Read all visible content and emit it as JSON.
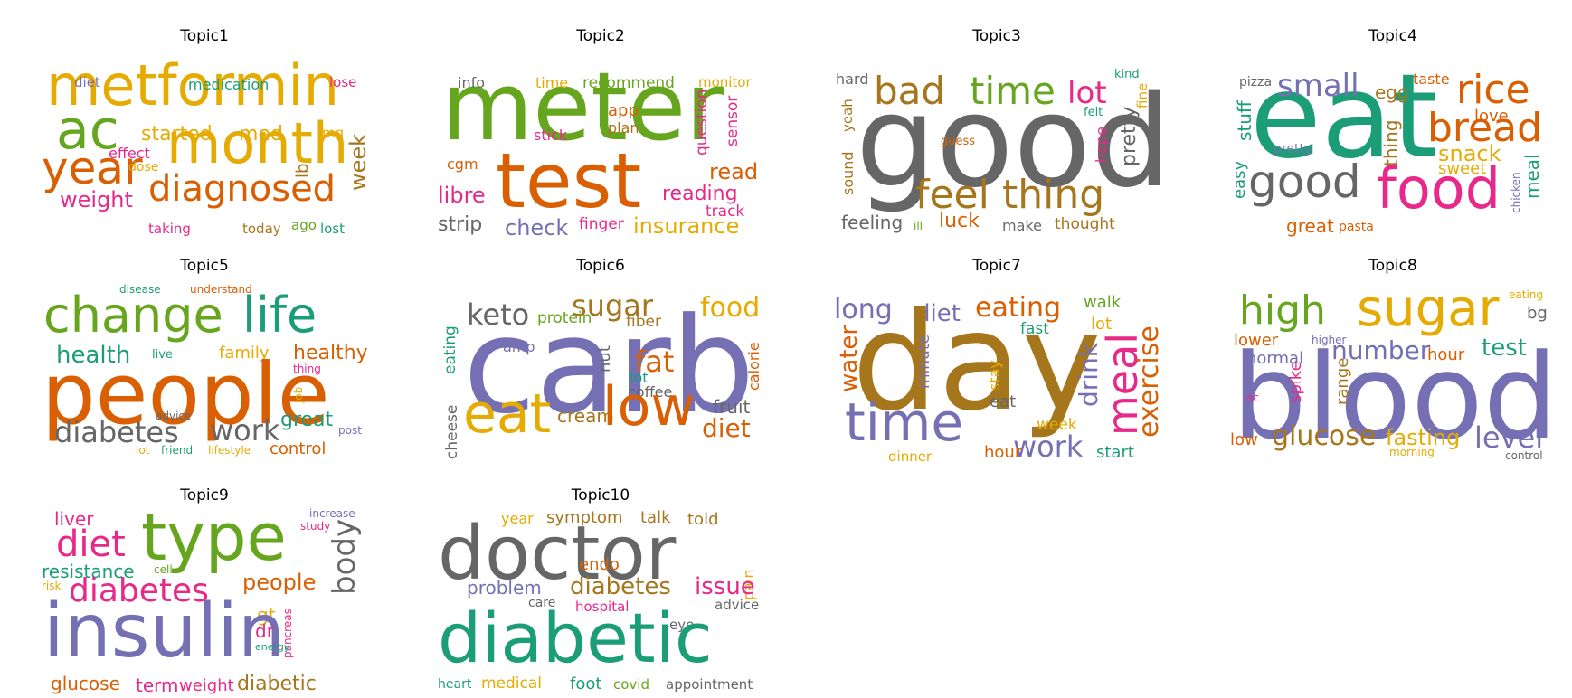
{
  "colors": {
    "green": "#1b9e77",
    "orange": "#d95f02",
    "purple": "#7570b3",
    "pink": "#e7298a",
    "lime": "#66a61e",
    "yellow": "#e6ab02",
    "brown": "#a6761d",
    "gray": "#666666"
  },
  "topics": [
    {
      "title": "Topic1",
      "words": [
        {
          "text": "metformin",
          "color": "yellow"
        },
        {
          "text": "ac",
          "color": "lime"
        },
        {
          "text": "month",
          "color": "yellow"
        },
        {
          "text": "year",
          "color": "orange"
        },
        {
          "text": "diagnosed",
          "color": "orange"
        },
        {
          "text": "started",
          "color": "yellow"
        },
        {
          "text": "med",
          "color": "yellow"
        },
        {
          "text": "weight",
          "color": "pink"
        },
        {
          "text": "week",
          "color": "brown"
        },
        {
          "text": "lb",
          "color": "brown"
        },
        {
          "text": "medication",
          "color": "green"
        },
        {
          "text": "diet",
          "color": "purple"
        },
        {
          "text": "lose",
          "color": "pink"
        },
        {
          "text": "effect",
          "color": "pink"
        },
        {
          "text": "dose",
          "color": "yellow"
        },
        {
          "text": "mg",
          "color": "yellow"
        },
        {
          "text": "taking",
          "color": "pink"
        },
        {
          "text": "today",
          "color": "brown"
        },
        {
          "text": "ago",
          "color": "lime"
        },
        {
          "text": "lost",
          "color": "green"
        }
      ]
    },
    {
      "title": "Topic2",
      "words": [
        {
          "text": "meter",
          "color": "lime"
        },
        {
          "text": "test",
          "color": "orange"
        },
        {
          "text": "info",
          "color": "gray"
        },
        {
          "text": "time",
          "color": "yellow"
        },
        {
          "text": "recommend",
          "color": "lime"
        },
        {
          "text": "monitor",
          "color": "yellow"
        },
        {
          "text": "app",
          "color": "orange"
        },
        {
          "text": "plan",
          "color": "brown"
        },
        {
          "text": "stick",
          "color": "pink"
        },
        {
          "text": "cgm",
          "color": "orange"
        },
        {
          "text": "libre",
          "color": "pink"
        },
        {
          "text": "question",
          "color": "pink"
        },
        {
          "text": "sensor",
          "color": "pink"
        },
        {
          "text": "read",
          "color": "orange"
        },
        {
          "text": "reading",
          "color": "pink"
        },
        {
          "text": "track",
          "color": "pink"
        },
        {
          "text": "strip",
          "color": "gray"
        },
        {
          "text": "check",
          "color": "purple"
        },
        {
          "text": "finger",
          "color": "pink"
        },
        {
          "text": "insurance",
          "color": "yellow"
        }
      ]
    },
    {
      "title": "Topic3",
      "words": [
        {
          "text": "good",
          "color": "gray"
        },
        {
          "text": "bad",
          "color": "brown"
        },
        {
          "text": "time",
          "color": "lime"
        },
        {
          "text": "lot",
          "color": "pink"
        },
        {
          "text": "hard",
          "color": "gray"
        },
        {
          "text": "kind",
          "color": "green"
        },
        {
          "text": "felt",
          "color": "green"
        },
        {
          "text": "fine",
          "color": "yellow"
        },
        {
          "text": "yeah",
          "color": "brown"
        },
        {
          "text": "guess",
          "color": "orange"
        },
        {
          "text": "hope",
          "color": "pink"
        },
        {
          "text": "pretty",
          "color": "gray"
        },
        {
          "text": "sound",
          "color": "brown"
        },
        {
          "text": "feel",
          "color": "brown"
        },
        {
          "text": "thing",
          "color": "brown"
        },
        {
          "text": "feeling",
          "color": "gray"
        },
        {
          "text": "ill",
          "color": "lime"
        },
        {
          "text": "luck",
          "color": "orange"
        },
        {
          "text": "make",
          "color": "gray"
        },
        {
          "text": "thought",
          "color": "brown"
        }
      ]
    },
    {
      "title": "Topic4",
      "words": [
        {
          "text": "eat",
          "color": "green"
        },
        {
          "text": "pizza",
          "color": "gray"
        },
        {
          "text": "small",
          "color": "purple"
        },
        {
          "text": "egg",
          "color": "brown"
        },
        {
          "text": "taste",
          "color": "orange"
        },
        {
          "text": "rice",
          "color": "orange"
        },
        {
          "text": "stuff",
          "color": "green"
        },
        {
          "text": "pretty",
          "color": "purple"
        },
        {
          "text": "love",
          "color": "orange"
        },
        {
          "text": "bread",
          "color": "orange"
        },
        {
          "text": "thing",
          "color": "brown"
        },
        {
          "text": "snack",
          "color": "yellow"
        },
        {
          "text": "easy",
          "color": "green"
        },
        {
          "text": "good",
          "color": "gray"
        },
        {
          "text": "sweet",
          "color": "yellow"
        },
        {
          "text": "food",
          "color": "pink"
        },
        {
          "text": "chicken",
          "color": "purple"
        },
        {
          "text": "meal",
          "color": "green"
        },
        {
          "text": "great",
          "color": "orange"
        },
        {
          "text": "pasta",
          "color": "orange"
        }
      ]
    },
    {
      "title": "Topic5",
      "words": [
        {
          "text": "disease",
          "color": "green"
        },
        {
          "text": "understand",
          "color": "orange"
        },
        {
          "text": "change",
          "color": "lime"
        },
        {
          "text": "life",
          "color": "green"
        },
        {
          "text": "health",
          "color": "green"
        },
        {
          "text": "live",
          "color": "green"
        },
        {
          "text": "family",
          "color": "yellow"
        },
        {
          "text": "healthy",
          "color": "orange"
        },
        {
          "text": "thing",
          "color": "pink"
        },
        {
          "text": "people",
          "color": "orange"
        },
        {
          "text": "job",
          "color": "yellow"
        },
        {
          "text": "advice",
          "color": "gray"
        },
        {
          "text": "diabetes",
          "color": "gray"
        },
        {
          "text": "work",
          "color": "gray"
        },
        {
          "text": "great",
          "color": "green"
        },
        {
          "text": "post",
          "color": "purple"
        },
        {
          "text": "lot",
          "color": "yellow"
        },
        {
          "text": "friend",
          "color": "green"
        },
        {
          "text": "lifestyle",
          "color": "yellow"
        },
        {
          "text": "control",
          "color": "orange"
        }
      ]
    },
    {
      "title": "Topic6",
      "words": [
        {
          "text": "keto",
          "color": "gray"
        },
        {
          "text": "sugar",
          "color": "brown"
        },
        {
          "text": "food",
          "color": "yellow"
        },
        {
          "text": "protein",
          "color": "lime"
        },
        {
          "text": "fiber",
          "color": "brown"
        },
        {
          "text": "eating",
          "color": "green"
        },
        {
          "text": "carb",
          "color": "purple"
        },
        {
          "text": "amp",
          "color": "purple"
        },
        {
          "text": "nut",
          "color": "gray"
        },
        {
          "text": "fat",
          "color": "orange"
        },
        {
          "text": "calorie",
          "color": "orange"
        },
        {
          "text": "lot",
          "color": "green"
        },
        {
          "text": "coffee",
          "color": "gray"
        },
        {
          "text": "cheese",
          "color": "gray"
        },
        {
          "text": "eat",
          "color": "yellow"
        },
        {
          "text": "cream",
          "color": "brown"
        },
        {
          "text": "low",
          "color": "orange"
        },
        {
          "text": "fruit",
          "color": "gray"
        },
        {
          "text": "diet",
          "color": "orange"
        }
      ]
    },
    {
      "title": "Topic7",
      "words": [
        {
          "text": "long",
          "color": "purple"
        },
        {
          "text": "diet",
          "color": "purple"
        },
        {
          "text": "eating",
          "color": "orange"
        },
        {
          "text": "walk",
          "color": "lime"
        },
        {
          "text": "fast",
          "color": "green"
        },
        {
          "text": "lot",
          "color": "yellow"
        },
        {
          "text": "water",
          "color": "orange"
        },
        {
          "text": "day",
          "color": "brown"
        },
        {
          "text": "minute",
          "color": "purple"
        },
        {
          "text": "meal",
          "color": "pink"
        },
        {
          "text": "exercise",
          "color": "orange"
        },
        {
          "text": "drink",
          "color": "purple"
        },
        {
          "text": "stay",
          "color": "yellow"
        },
        {
          "text": "eat",
          "color": "gray"
        },
        {
          "text": "time",
          "color": "purple"
        },
        {
          "text": "week",
          "color": "yellow"
        },
        {
          "text": "work",
          "color": "purple"
        },
        {
          "text": "dinner",
          "color": "yellow"
        },
        {
          "text": "hour",
          "color": "orange"
        },
        {
          "text": "start",
          "color": "green"
        }
      ]
    },
    {
      "title": "Topic8",
      "words": [
        {
          "text": "high",
          "color": "lime"
        },
        {
          "text": "sugar",
          "color": "yellow"
        },
        {
          "text": "eating",
          "color": "yellow"
        },
        {
          "text": "bg",
          "color": "gray"
        },
        {
          "text": "lower",
          "color": "orange"
        },
        {
          "text": "higher",
          "color": "purple"
        },
        {
          "text": "number",
          "color": "purple"
        },
        {
          "text": "test",
          "color": "green"
        },
        {
          "text": "normal",
          "color": "purple"
        },
        {
          "text": "hour",
          "color": "orange"
        },
        {
          "text": "blood",
          "color": "purple"
        },
        {
          "text": "ac",
          "color": "pink"
        },
        {
          "text": "spike",
          "color": "pink"
        },
        {
          "text": "range",
          "color": "brown"
        },
        {
          "text": "low",
          "color": "orange"
        },
        {
          "text": "glucose",
          "color": "brown"
        },
        {
          "text": "fasting",
          "color": "yellow"
        },
        {
          "text": "level",
          "color": "purple"
        },
        {
          "text": "morning",
          "color": "yellow"
        },
        {
          "text": "control",
          "color": "gray"
        }
      ]
    },
    {
      "title": "Topic9",
      "words": [
        {
          "text": "liver",
          "color": "pink"
        },
        {
          "text": "type",
          "color": "lime"
        },
        {
          "text": "increase",
          "color": "purple"
        },
        {
          "text": "study",
          "color": "pink"
        },
        {
          "text": "diet",
          "color": "pink"
        },
        {
          "text": "body",
          "color": "gray"
        },
        {
          "text": "resistance",
          "color": "green"
        },
        {
          "text": "cell",
          "color": "lime"
        },
        {
          "text": "risk",
          "color": "yellow"
        },
        {
          "text": "diabetes",
          "color": "pink"
        },
        {
          "text": "people",
          "color": "orange"
        },
        {
          "text": "gt",
          "color": "yellow"
        },
        {
          "text": "pancreas",
          "color": "pink"
        },
        {
          "text": "insulin",
          "color": "purple"
        },
        {
          "text": "dr",
          "color": "pink"
        },
        {
          "text": "energy",
          "color": "green"
        },
        {
          "text": "glucose",
          "color": "orange"
        },
        {
          "text": "term",
          "color": "pink"
        },
        {
          "text": "weight",
          "color": "pink"
        },
        {
          "text": "diabetic",
          "color": "brown"
        }
      ]
    },
    {
      "title": "Topic10",
      "words": [
        {
          "text": "year",
          "color": "yellow"
        },
        {
          "text": "symptom",
          "color": "brown"
        },
        {
          "text": "talk",
          "color": "brown"
        },
        {
          "text": "told",
          "color": "brown"
        },
        {
          "text": "doctor",
          "color": "gray"
        },
        {
          "text": "pain",
          "color": "yellow"
        },
        {
          "text": "endo",
          "color": "orange"
        },
        {
          "text": "problem",
          "color": "purple"
        },
        {
          "text": "diabetes",
          "color": "brown"
        },
        {
          "text": "issue",
          "color": "pink"
        },
        {
          "text": "care",
          "color": "gray"
        },
        {
          "text": "hospital",
          "color": "pink"
        },
        {
          "text": "advice",
          "color": "gray"
        },
        {
          "text": "eye",
          "color": "gray"
        },
        {
          "text": "diabetic",
          "color": "green"
        },
        {
          "text": "heart",
          "color": "green"
        },
        {
          "text": "medical",
          "color": "yellow"
        },
        {
          "text": "foot",
          "color": "green"
        },
        {
          "text": "covid",
          "color": "lime"
        },
        {
          "text": "appointment",
          "color": "gray"
        }
      ]
    }
  ]
}
